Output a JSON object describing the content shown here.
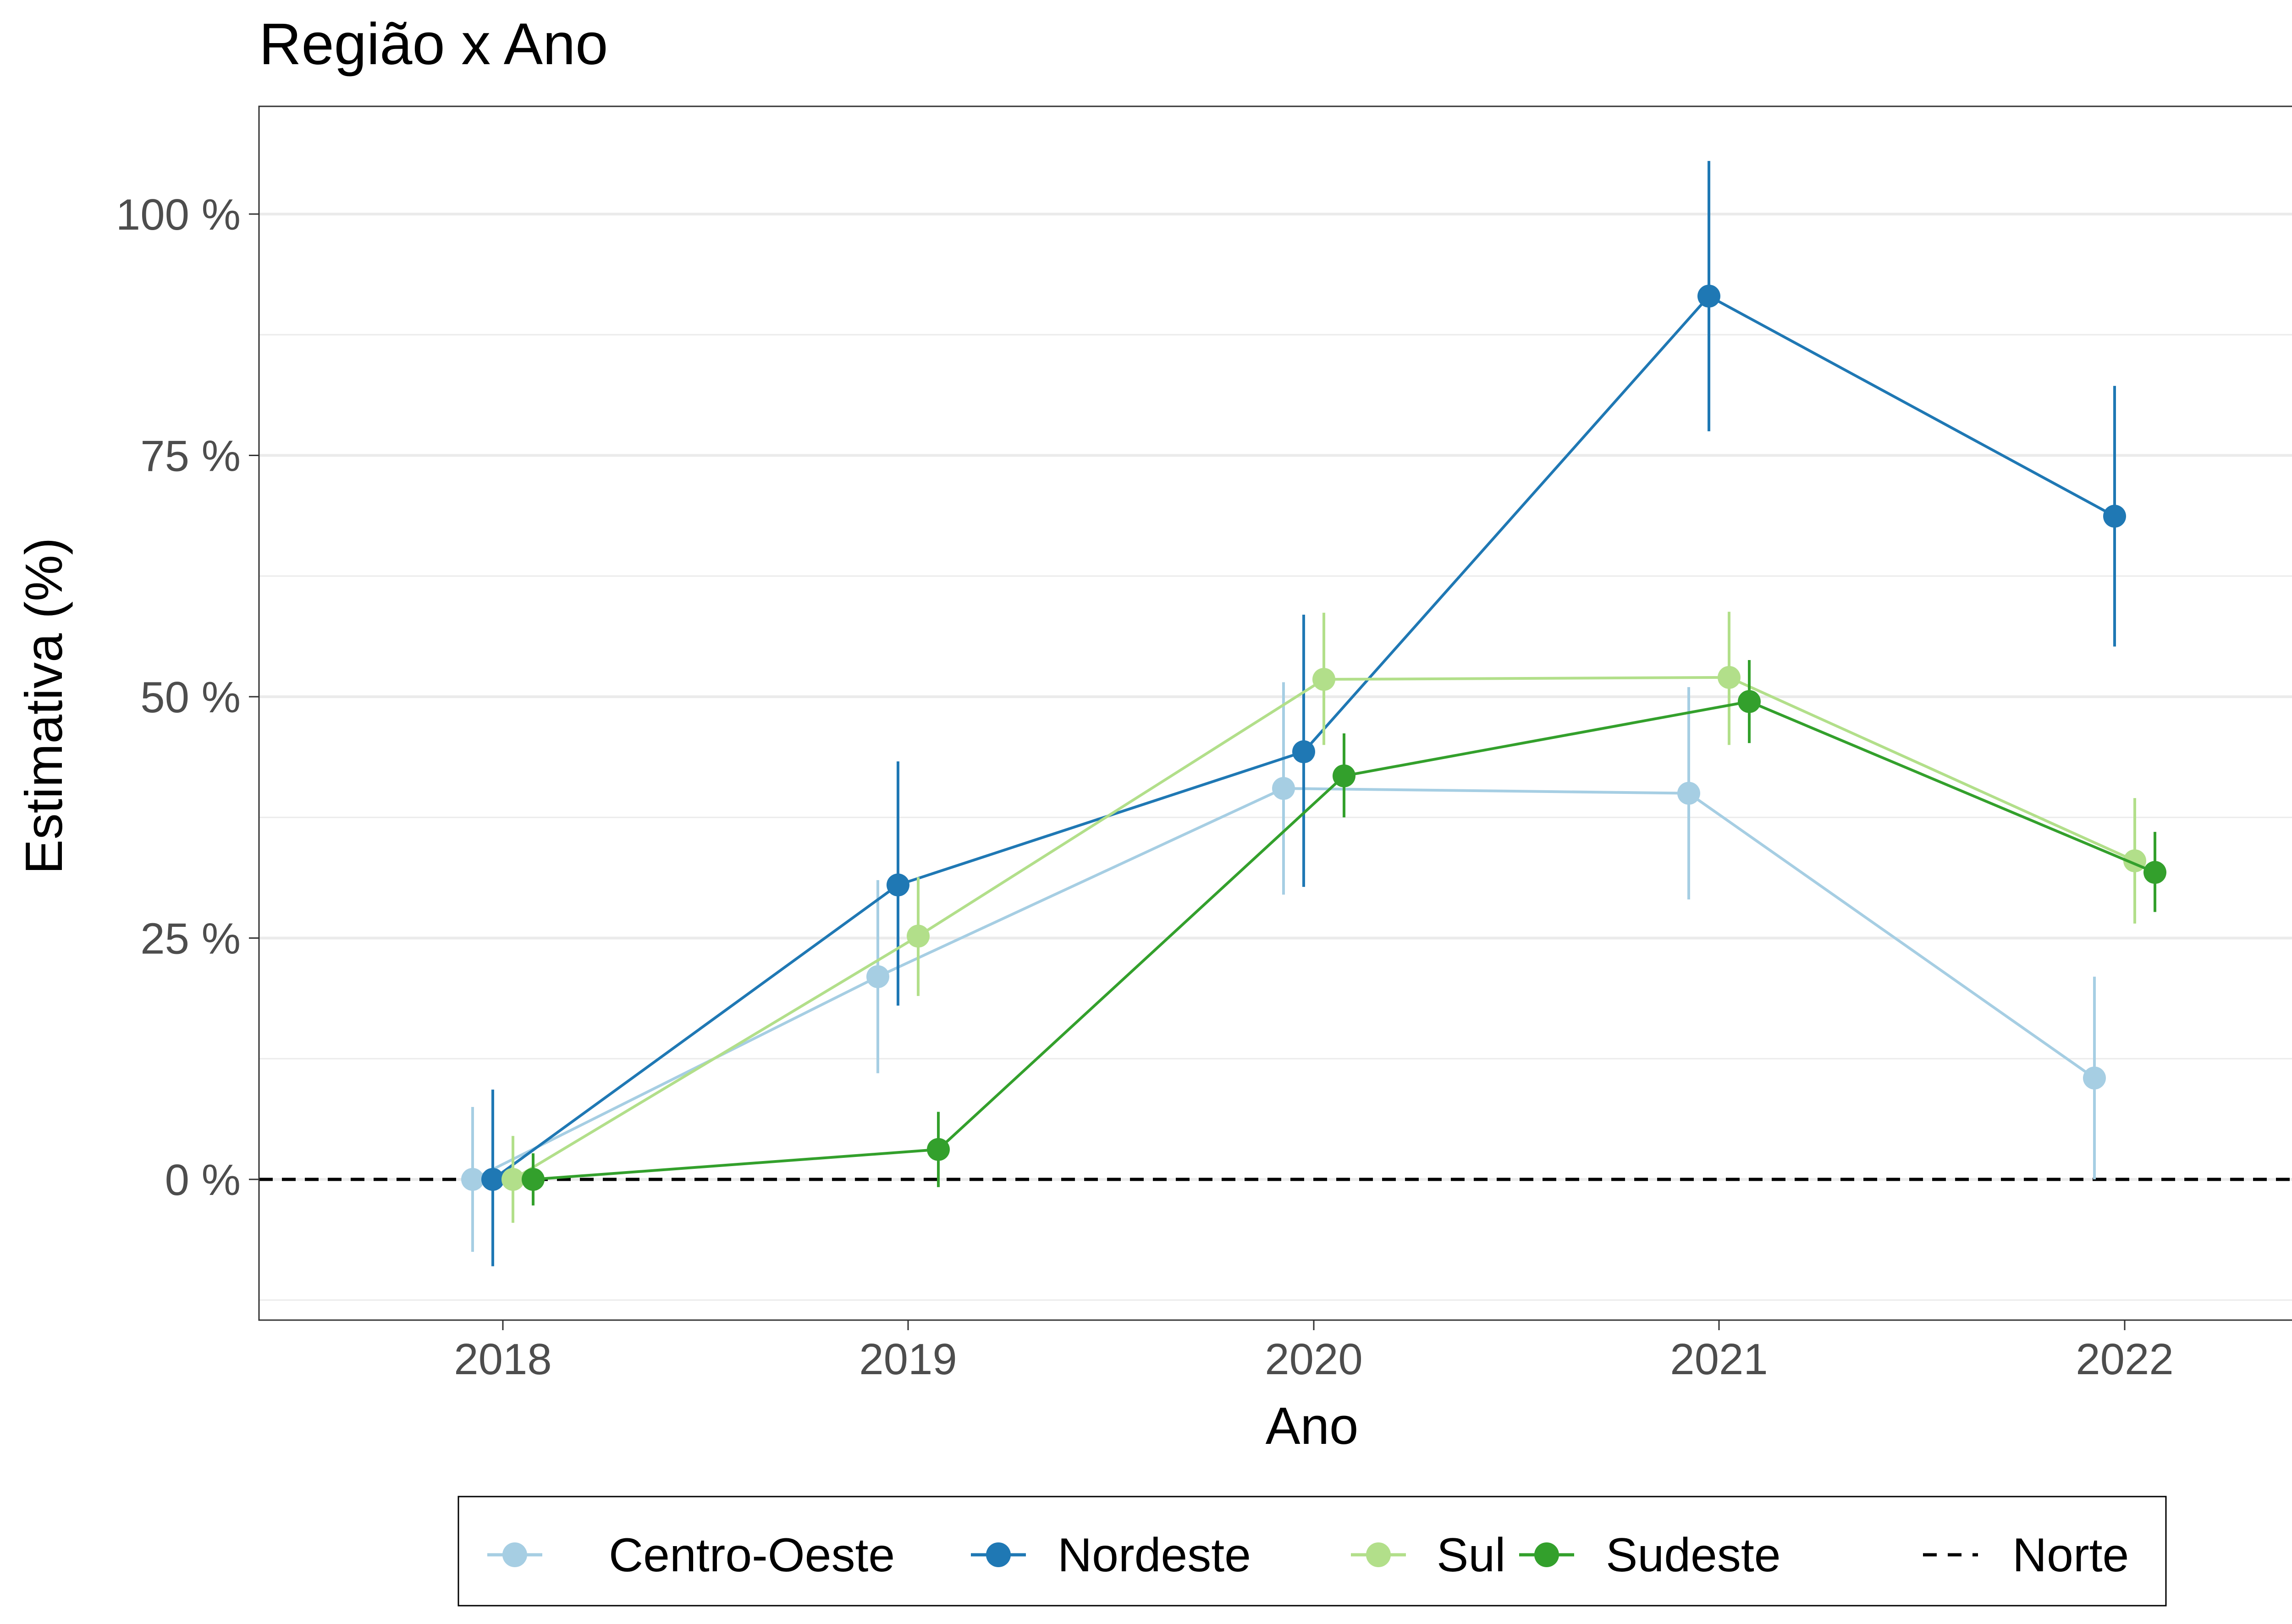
{
  "chart_data": {
    "type": "line",
    "title": "Região x Ano",
    "xlabel": "Ano",
    "ylabel": "Estimativa (%)",
    "categories": [
      "2018",
      "2019",
      "2020",
      "2021",
      "2022"
    ],
    "y_ticks": [
      {
        "value": 0,
        "label": "0 %"
      },
      {
        "value": 25,
        "label": "25 %"
      },
      {
        "value": 50,
        "label": "50 %"
      },
      {
        "value": 75,
        "label": "75 %"
      },
      {
        "value": 100,
        "label": "100 %"
      }
    ],
    "ylim": [
      -15,
      111
    ],
    "grid": "horizontal",
    "legend_position": "bottom",
    "error_bars": true,
    "series": [
      {
        "name": "Centro-Oeste",
        "color": "#a6cee3",
        "values": [
          0,
          21,
          40.5,
          40,
          10.5
        ],
        "lower": [
          -7.5,
          11,
          29.5,
          29,
          0
        ],
        "upper": [
          7.5,
          31,
          51.5,
          51,
          21
        ]
      },
      {
        "name": "Nordeste",
        "color": "#1f78b4",
        "values": [
          0,
          30.5,
          44.3,
          91.5,
          68.7
        ],
        "lower": [
          -9,
          18,
          30.3,
          77.5,
          55.2
        ],
        "upper": [
          9.3,
          43.3,
          58.5,
          105.5,
          82.2
        ]
      },
      {
        "name": "Sul",
        "color": "#b2df8a",
        "values": [
          0,
          25.2,
          51.8,
          52,
          33
        ],
        "lower": [
          -4.5,
          19,
          45,
          45,
          26.5
        ],
        "upper": [
          4.5,
          31.3,
          58.7,
          58.8,
          39.5
        ]
      },
      {
        "name": "Sudeste",
        "color": "#33a02c",
        "values": [
          0,
          3.1,
          41.8,
          49.5,
          31.8
        ],
        "lower": [
          -2.7,
          -0.8,
          37.5,
          45.2,
          27.7
        ],
        "upper": [
          2.7,
          7,
          46.2,
          53.8,
          36
        ]
      }
    ],
    "reference_line": {
      "name": "Norte",
      "value": 0,
      "style": "dashed",
      "color": "#000000"
    }
  }
}
